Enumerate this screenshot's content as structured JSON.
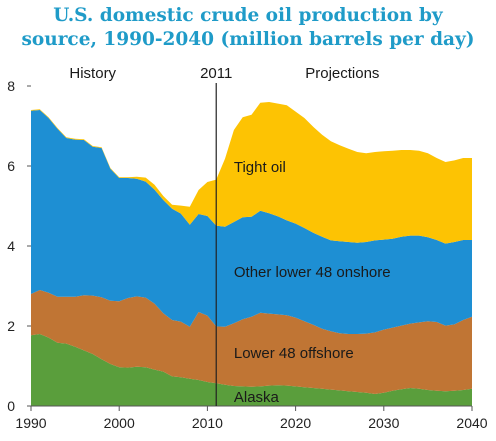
{
  "chart_data": {
    "type": "area",
    "title_line1": "U.S. domestic crude oil production by",
    "title_line2": "source, 1990-2040 (million barrels per day)",
    "xlim": [
      1990,
      2040
    ],
    "ylim": [
      0,
      8
    ],
    "x_ticks": [
      "1990",
      "2000",
      "2010",
      "2020",
      "2030",
      "2040"
    ],
    "y_ticks": [
      "0",
      "2",
      "4",
      "6",
      "8"
    ],
    "stacked": true,
    "x": [
      1990,
      1991,
      1992,
      1993,
      1994,
      1995,
      1996,
      1997,
      1998,
      1999,
      2000,
      2001,
      2002,
      2003,
      2004,
      2005,
      2006,
      2007,
      2008,
      2009,
      2010,
      2011,
      2012,
      2013,
      2014,
      2015,
      2016,
      2017,
      2018,
      2019,
      2020,
      2021,
      2022,
      2023,
      2024,
      2025,
      2026,
      2027,
      2028,
      2029,
      2030,
      2031,
      2032,
      2033,
      2034,
      2035,
      2036,
      2037,
      2038,
      2039,
      2040
    ],
    "series": [
      {
        "name": "Alaska",
        "color": "#5a9e3c",
        "values": [
          1.77,
          1.8,
          1.71,
          1.58,
          1.56,
          1.48,
          1.39,
          1.3,
          1.17,
          1.05,
          0.97,
          0.96,
          0.98,
          0.97,
          0.91,
          0.86,
          0.74,
          0.72,
          0.68,
          0.65,
          0.6,
          0.57,
          0.53,
          0.5,
          0.49,
          0.48,
          0.49,
          0.51,
          0.52,
          0.51,
          0.49,
          0.47,
          0.45,
          0.43,
          0.41,
          0.39,
          0.37,
          0.35,
          0.33,
          0.3,
          0.33,
          0.38,
          0.42,
          0.45,
          0.43,
          0.4,
          0.38,
          0.37,
          0.38,
          0.4,
          0.43
        ]
      },
      {
        "name": "Lower 48 offshore",
        "color": "#c07534",
        "values": [
          1.03,
          1.1,
          1.12,
          1.15,
          1.17,
          1.25,
          1.38,
          1.46,
          1.55,
          1.58,
          1.65,
          1.74,
          1.76,
          1.74,
          1.65,
          1.46,
          1.41,
          1.39,
          1.3,
          1.7,
          1.66,
          1.42,
          1.45,
          1.57,
          1.68,
          1.75,
          1.84,
          1.8,
          1.77,
          1.76,
          1.72,
          1.65,
          1.58,
          1.5,
          1.46,
          1.43,
          1.43,
          1.45,
          1.48,
          1.54,
          1.58,
          1.58,
          1.59,
          1.61,
          1.66,
          1.72,
          1.72,
          1.64,
          1.66,
          1.75,
          1.8
        ]
      },
      {
        "name": "Other lower 48 onshore",
        "color": "#1e8fd3",
        "values": [
          4.58,
          4.5,
          4.37,
          4.2,
          3.97,
          3.93,
          3.88,
          3.72,
          3.73,
          3.3,
          3.08,
          3.0,
          2.94,
          2.9,
          2.85,
          2.83,
          2.78,
          2.7,
          2.55,
          2.45,
          2.49,
          2.52,
          2.5,
          2.53,
          2.55,
          2.5,
          2.55,
          2.51,
          2.45,
          2.37,
          2.35,
          2.33,
          2.3,
          2.3,
          2.27,
          2.3,
          2.3,
          2.28,
          2.29,
          2.3,
          2.25,
          2.22,
          2.22,
          2.2,
          2.17,
          2.1,
          2.05,
          2.05,
          2.06,
          2.0,
          1.92
        ]
      },
      {
        "name": "Tight oil",
        "color": "#fdc303",
        "values": [
          0.02,
          0.02,
          0.02,
          0.02,
          0.02,
          0.02,
          0.02,
          0.02,
          0.02,
          0.02,
          0.02,
          0.02,
          0.05,
          0.1,
          0.12,
          0.1,
          0.1,
          0.2,
          0.45,
          0.6,
          0.85,
          1.15,
          1.7,
          2.3,
          2.5,
          2.55,
          2.7,
          2.78,
          2.82,
          2.88,
          2.8,
          2.75,
          2.65,
          2.55,
          2.48,
          2.4,
          2.33,
          2.27,
          2.22,
          2.21,
          2.21,
          2.2,
          2.17,
          2.14,
          2.12,
          2.1,
          2.05,
          2.04,
          2.04,
          2.05,
          2.05
        ]
      }
    ],
    "annotations": {
      "history": "History",
      "divider_year": "2011",
      "projections": "Projections",
      "tight_oil": "Tight oil",
      "onshore": "Other lower 48 onshore",
      "offshore": "Lower 48 offshore",
      "alaska": "Alaska"
    },
    "colors": {
      "title": "#1f9bc8",
      "axis": "#555555",
      "divider": "#222222"
    }
  }
}
